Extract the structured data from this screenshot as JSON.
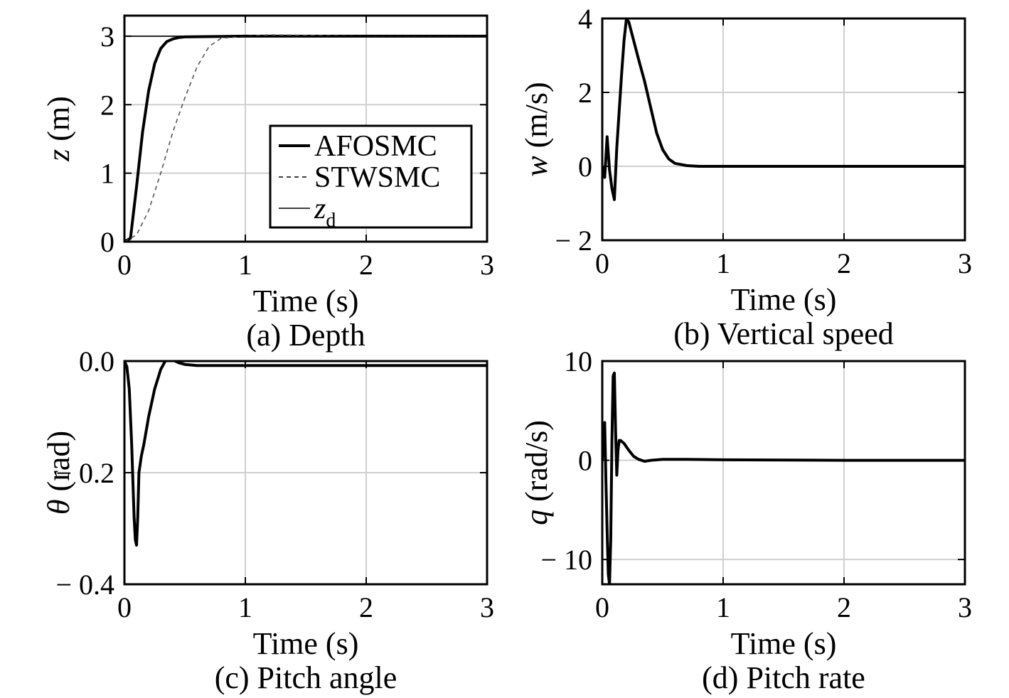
{
  "chart_data": [
    {
      "panel_id": "a",
      "type": "line",
      "caption": "(a) Depth",
      "xlabel": "Time (s)",
      "ylabel_var": "z",
      "ylabel_unit": " (m)",
      "xlim": [
        0,
        3
      ],
      "ylim": [
        0,
        3.3
      ],
      "xticks": [
        0,
        1,
        2,
        3
      ],
      "xtick_labels": [
        "0",
        "1",
        "2",
        "3"
      ],
      "yticks": [
        0,
        1,
        2,
        3
      ],
      "ytick_labels": [
        "0",
        "1",
        "2",
        "3"
      ],
      "grid": true,
      "legend": {
        "placement": "lower-right",
        "entries": [
          {
            "label": "AFOSMC",
            "style": "solid-thick"
          },
          {
            "label": "STWSMC",
            "style": "dashed-thin"
          },
          {
            "label_main": "z",
            "label_sub": "d",
            "style": "solid-thin"
          }
        ]
      },
      "series": [
        {
          "key": "afosmc",
          "style": "solid-thick",
          "color": "#000000",
          "x": [
            0,
            0.05,
            0.1,
            0.15,
            0.2,
            0.25,
            0.3,
            0.35,
            0.4,
            0.45,
            0.5,
            1.0,
            2.0,
            3.0
          ],
          "y": [
            0,
            0.05,
            0.8,
            1.6,
            2.2,
            2.6,
            2.82,
            2.92,
            2.96,
            2.98,
            2.99,
            3.0,
            3.0,
            3.0
          ]
        },
        {
          "key": "stwsmc",
          "style": "dashed-thin",
          "color": "#555555",
          "x": [
            0,
            0.1,
            0.2,
            0.3,
            0.4,
            0.5,
            0.6,
            0.7,
            0.8,
            1.0,
            1.2,
            2.0,
            3.0
          ],
          "y": [
            0,
            0.1,
            0.45,
            1.0,
            1.6,
            2.1,
            2.55,
            2.85,
            2.97,
            3.0,
            3.02,
            3.0,
            3.0
          ]
        },
        {
          "key": "zd",
          "style": "solid-thin",
          "color": "#000000",
          "x": [
            0,
            3
          ],
          "y": [
            3,
            3
          ]
        }
      ]
    },
    {
      "panel_id": "b",
      "type": "line",
      "caption": "(b) Vertical speed",
      "xlabel": "Time (s)",
      "ylabel_var": "w",
      "ylabel_unit": " (m/s)",
      "xlim": [
        0,
        3
      ],
      "ylim": [
        -2,
        4
      ],
      "xticks": [
        0,
        1,
        2,
        3
      ],
      "xtick_labels": [
        "0",
        "1",
        "2",
        "3"
      ],
      "yticks": [
        -2,
        0,
        2,
        4
      ],
      "ytick_labels": [
        "− 2",
        "0",
        "2",
        "4"
      ],
      "grid": true,
      "series": [
        {
          "key": "w",
          "style": "solid-thick",
          "color": "#000000",
          "x": [
            0,
            0.02,
            0.04,
            0.06,
            0.08,
            0.1,
            0.12,
            0.14,
            0.16,
            0.18,
            0.2,
            0.22,
            0.26,
            0.3,
            0.35,
            0.4,
            0.45,
            0.5,
            0.55,
            0.6,
            0.7,
            0.8,
            1.0,
            2.0,
            3.0
          ],
          "y": [
            0,
            -0.3,
            0.8,
            -0.1,
            -0.6,
            -0.9,
            0.5,
            1.5,
            2.5,
            3.4,
            4.0,
            3.9,
            3.4,
            2.9,
            2.3,
            1.6,
            0.9,
            0.45,
            0.2,
            0.08,
            0.02,
            0.0,
            0.0,
            0.0,
            0.0
          ]
        }
      ]
    },
    {
      "panel_id": "c",
      "type": "line",
      "caption": "(c) Pitch angle",
      "xlabel": "Time (s)",
      "ylabel_var": "θ",
      "ylabel_unit": " (rad)",
      "xlim": [
        0,
        3
      ],
      "ylim": [
        -0.4,
        0.0
      ],
      "xticks": [
        0,
        1,
        2,
        3
      ],
      "xtick_labels": [
        "0",
        "1",
        "2",
        "3"
      ],
      "yticks": [
        -0.4,
        -0.2,
        0.0
      ],
      "ytick_labels": [
        "− 0.4",
        "− 0.2",
        "0.0"
      ],
      "grid": true,
      "series": [
        {
          "key": "theta",
          "style": "solid-thick",
          "color": "#000000",
          "x": [
            0,
            0.02,
            0.04,
            0.06,
            0.08,
            0.09,
            0.1,
            0.11,
            0.12,
            0.14,
            0.16,
            0.2,
            0.25,
            0.3,
            0.35,
            0.4,
            0.45,
            0.5,
            0.6,
            0.8,
            1.0,
            2.0,
            3.0
          ],
          "y": [
            0,
            -0.01,
            -0.05,
            -0.15,
            -0.28,
            -0.32,
            -0.33,
            -0.28,
            -0.2,
            -0.17,
            -0.15,
            -0.1,
            -0.05,
            -0.015,
            0.005,
            0.002,
            -0.003,
            -0.006,
            -0.008,
            -0.008,
            -0.008,
            -0.008,
            -0.008
          ]
        }
      ]
    },
    {
      "panel_id": "d",
      "type": "line",
      "caption": "(d) Pitch rate",
      "xlabel": "Time (s)",
      "ylabel_var": "q",
      "ylabel_unit": " (rad/s)",
      "xlim": [
        0,
        3
      ],
      "ylim": [
        -12.5,
        10
      ],
      "xticks": [
        0,
        1,
        2,
        3
      ],
      "xtick_labels": [
        "0",
        "1",
        "2",
        "3"
      ],
      "yticks": [
        -10,
        0,
        10
      ],
      "ytick_labels": [
        "− 10",
        "0",
        "10"
      ],
      "grid": true,
      "series": [
        {
          "key": "q",
          "style": "solid-thick",
          "color": "#000000",
          "x": [
            0,
            0.01,
            0.02,
            0.03,
            0.04,
            0.05,
            0.06,
            0.07,
            0.08,
            0.09,
            0.1,
            0.11,
            0.12,
            0.13,
            0.14,
            0.15,
            0.18,
            0.22,
            0.26,
            0.3,
            0.35,
            0.4,
            0.5,
            0.7,
            1.0,
            2.0,
            3.0
          ],
          "y": [
            0,
            2.0,
            3.8,
            -2.0,
            -7.0,
            -11.5,
            -12.5,
            -8.0,
            2.0,
            8.5,
            8.8,
            3.0,
            -1.5,
            1.0,
            2.0,
            2.0,
            1.7,
            1.0,
            0.4,
            0.1,
            -0.1,
            0.0,
            0.1,
            0.1,
            0.05,
            0.0,
            0.0
          ]
        }
      ]
    }
  ]
}
